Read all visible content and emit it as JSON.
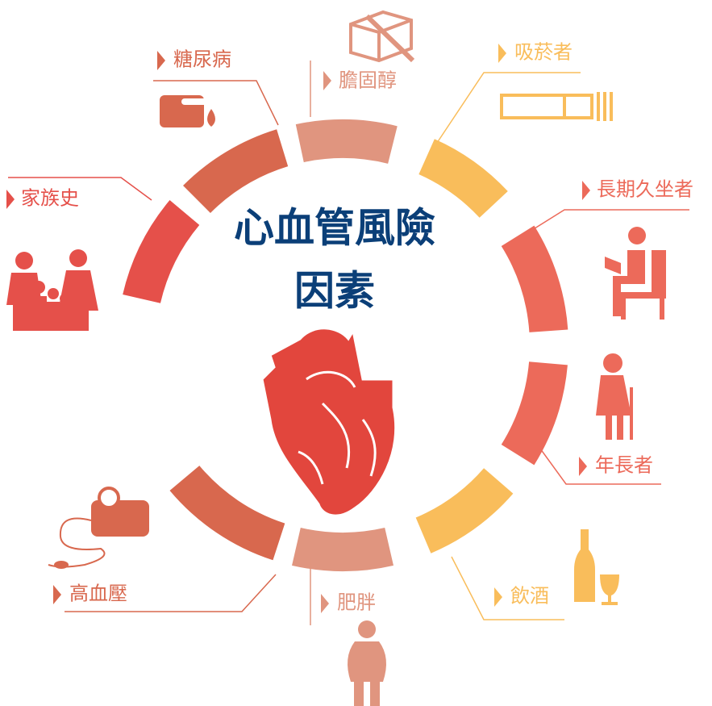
{
  "title": {
    "line1": "心血管風險",
    "line2": "因素"
  },
  "factors": [
    {
      "label": "膽固醇"
    },
    {
      "label": "吸菸者"
    },
    {
      "label": "長期久坐者"
    },
    {
      "label": "年長者"
    },
    {
      "label": "飲酒"
    },
    {
      "label": "肥胖"
    },
    {
      "label": "高血壓"
    },
    {
      "label": "家族史"
    },
    {
      "label": "糖尿病"
    }
  ]
}
